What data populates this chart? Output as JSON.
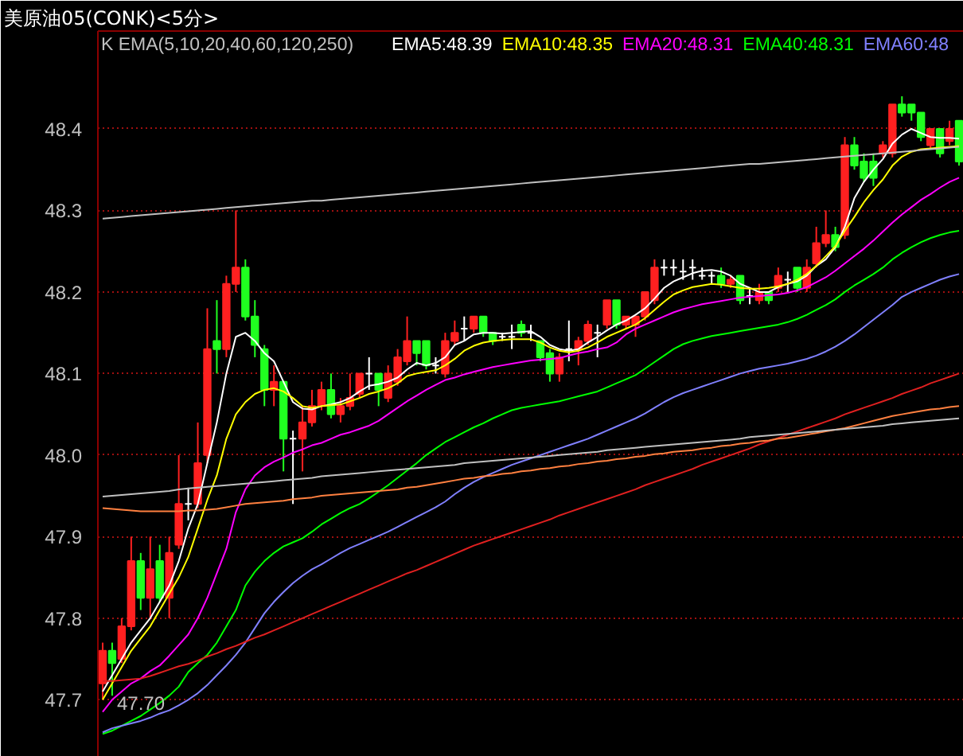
{
  "chart_data": {
    "type": "candlestick",
    "title": "美原油05(CONK)<5分>",
    "legend_title": "K EMA(5,10,20,40,60,120,250)",
    "categories": [
      null,
      null,
      null,
      null,
      null,
      null,
      null,
      null,
      null,
      null,
      null,
      null,
      null,
      null,
      null,
      null,
      null,
      null,
      null,
      null,
      null,
      null,
      null,
      null,
      null,
      null,
      null,
      null,
      null,
      null,
      null,
      null,
      null,
      null,
      null,
      null,
      null,
      null,
      null,
      null,
      null,
      null,
      null,
      null,
      null,
      null,
      null,
      null,
      null,
      null,
      null,
      null,
      null,
      null,
      null,
      null,
      null,
      null,
      null,
      null,
      null,
      null,
      null,
      null,
      null,
      null,
      null,
      null,
      null,
      null,
      null,
      null,
      null,
      null,
      null,
      null,
      null,
      null,
      null,
      null,
      null,
      null,
      null,
      null,
      null,
      null,
      null,
      null,
      null,
      null,
      null
    ],
    "ohlc": [
      [
        47.72,
        47.77,
        47.7,
        47.76
      ],
      [
        47.76,
        47.77,
        47.705,
        47.745
      ],
      [
        47.75,
        47.8,
        47.745,
        47.79
      ],
      [
        47.79,
        47.9,
        47.785,
        47.87
      ],
      [
        47.87,
        47.88,
        47.81,
        47.825
      ],
      [
        47.825,
        47.9,
        47.8,
        47.86
      ],
      [
        47.87,
        47.89,
        47.82,
        47.825
      ],
      [
        47.825,
        47.9,
        47.8,
        47.88
      ],
      [
        47.89,
        48.0,
        47.885,
        47.94
      ],
      [
        47.94,
        47.96,
        47.92,
        47.94
      ],
      [
        47.94,
        48.04,
        47.935,
        47.99
      ],
      [
        48.0,
        48.18,
        47.99,
        48.13
      ],
      [
        48.14,
        48.19,
        48.1,
        48.13
      ],
      [
        48.13,
        48.22,
        48.12,
        48.21
      ],
      [
        48.21,
        48.3,
        48.2,
        48.23
      ],
      [
        48.23,
        48.24,
        48.165,
        48.17
      ],
      [
        48.17,
        48.19,
        48.12,
        48.135
      ],
      [
        48.13,
        48.135,
        48.06,
        48.08
      ],
      [
        48.08,
        48.11,
        48.06,
        48.09
      ],
      [
        48.09,
        48.09,
        47.98,
        48.02
      ],
      [
        48.02,
        48.03,
        47.94,
        48.02
      ],
      [
        48.02,
        48.06,
        47.98,
        48.04
      ],
      [
        48.04,
        48.08,
        48.035,
        48.06
      ],
      [
        48.06,
        48.09,
        48.055,
        48.08
      ],
      [
        48.08,
        48.1,
        48.045,
        48.05
      ],
      [
        48.05,
        48.07,
        48.04,
        48.06
      ],
      [
        48.06,
        48.1,
        48.055,
        48.07
      ],
      [
        48.075,
        48.1,
        48.07,
        48.1
      ],
      [
        48.1,
        48.12,
        48.08,
        48.1
      ],
      [
        48.1,
        48.1,
        48.06,
        48.08
      ],
      [
        48.07,
        48.11,
        48.065,
        48.1
      ],
      [
        48.09,
        48.13,
        48.085,
        48.12
      ],
      [
        48.115,
        48.17,
        48.11,
        48.14
      ],
      [
        48.14,
        48.14,
        48.11,
        48.125
      ],
      [
        48.14,
        48.14,
        48.105,
        48.11
      ],
      [
        48.11,
        48.12,
        48.1,
        48.11
      ],
      [
        48.1,
        48.15,
        48.095,
        48.14
      ],
      [
        48.14,
        48.165,
        48.135,
        48.15
      ],
      [
        48.155,
        48.17,
        48.14,
        48.155
      ],
      [
        48.155,
        48.17,
        48.15,
        48.17
      ],
      [
        48.17,
        48.17,
        48.145,
        48.15
      ],
      [
        48.15,
        48.15,
        48.135,
        48.14
      ],
      [
        48.145,
        48.15,
        48.14,
        48.145
      ],
      [
        48.145,
        48.16,
        48.13,
        48.145
      ],
      [
        48.16,
        48.165,
        48.145,
        48.15
      ],
      [
        48.15,
        48.16,
        48.14,
        48.15
      ],
      [
        48.14,
        48.14,
        48.115,
        48.12
      ],
      [
        48.125,
        48.13,
        48.09,
        48.1
      ],
      [
        48.1,
        48.125,
        48.09,
        48.12
      ],
      [
        48.13,
        48.165,
        48.115,
        48.13
      ],
      [
        48.13,
        48.145,
        48.11,
        48.14
      ],
      [
        48.14,
        48.165,
        48.135,
        48.16
      ],
      [
        48.15,
        48.16,
        48.12,
        48.15
      ],
      [
        48.16,
        48.19,
        48.155,
        48.19
      ],
      [
        48.19,
        48.19,
        48.155,
        48.16
      ],
      [
        48.16,
        48.17,
        48.155,
        48.17
      ],
      [
        48.16,
        48.17,
        48.145,
        48.17
      ],
      [
        48.17,
        48.2,
        48.165,
        48.2
      ],
      [
        48.19,
        48.24,
        48.185,
        48.23
      ],
      [
        48.23,
        48.24,
        48.22,
        48.23
      ],
      [
        48.23,
        48.24,
        48.22,
        48.23
      ],
      [
        48.225,
        48.24,
        48.215,
        48.225
      ],
      [
        48.23,
        48.24,
        48.215,
        48.23
      ],
      [
        48.22,
        48.23,
        48.215,
        48.22
      ],
      [
        48.22,
        48.225,
        48.21,
        48.22
      ],
      [
        48.22,
        48.23,
        48.205,
        48.21
      ],
      [
        48.21,
        48.22,
        48.205,
        48.215
      ],
      [
        48.22,
        48.22,
        48.185,
        48.19
      ],
      [
        48.195,
        48.205,
        48.185,
        48.195
      ],
      [
        48.19,
        48.21,
        48.185,
        48.2
      ],
      [
        48.2,
        48.2,
        48.185,
        48.19
      ],
      [
        48.205,
        48.23,
        48.2,
        48.22
      ],
      [
        48.215,
        48.225,
        48.2,
        48.215
      ],
      [
        48.23,
        48.23,
        48.2,
        48.205
      ],
      [
        48.205,
        48.24,
        48.2,
        48.23
      ],
      [
        48.235,
        48.28,
        48.23,
        48.26
      ],
      [
        48.26,
        48.3,
        48.255,
        48.27
      ],
      [
        48.27,
        48.28,
        48.25,
        48.255
      ],
      [
        48.27,
        48.39,
        48.265,
        48.38
      ],
      [
        48.38,
        48.39,
        48.35,
        48.355
      ],
      [
        48.36,
        48.37,
        48.335,
        48.34
      ],
      [
        48.36,
        48.37,
        48.33,
        48.34
      ],
      [
        48.37,
        48.385,
        48.365,
        48.38
      ],
      [
        48.37,
        48.43,
        48.365,
        48.43
      ],
      [
        48.43,
        48.44,
        48.415,
        48.42
      ],
      [
        48.43,
        48.43,
        48.41,
        48.42
      ],
      [
        48.42,
        48.42,
        48.385,
        48.39
      ],
      [
        48.38,
        48.4,
        48.375,
        48.4
      ],
      [
        48.4,
        48.4,
        48.365,
        48.37
      ],
      [
        48.385,
        48.41,
        48.38,
        48.4
      ],
      [
        48.41,
        48.41,
        48.355,
        48.36
      ]
    ],
    "colors": [
      "#ff2020",
      "#20ff20",
      "#ff2020",
      "#ff2020",
      "#20ff20",
      "#ff2020",
      "#20ff20",
      "#ff2020",
      "#ff2020",
      "#ffffff",
      "#ff2020",
      "#ff2020",
      "#20ff20",
      "#ff2020",
      "#ff2020",
      "#20ff20",
      "#20ff20",
      "#20ff20",
      "#ff2020",
      "#20ff20",
      "#ffffff",
      "#ff2020",
      "#ff2020",
      "#ff2020",
      "#20ff20",
      "#ff2020",
      "#ff2020",
      "#ff2020",
      "#ffffff",
      "#20ff20",
      "#ff2020",
      "#ff2020",
      "#ff2020",
      "#20ff20",
      "#20ff20",
      "#ffffff",
      "#ff2020",
      "#ff2020",
      "#ffffff",
      "#ff2020",
      "#20ff20",
      "#20ff20",
      "#ffffff",
      "#ffffff",
      "#20ff20",
      "#ffffff",
      "#20ff20",
      "#20ff20",
      "#ff2020",
      "#ffffff",
      "#ff2020",
      "#ff2020",
      "#ffffff",
      "#ff2020",
      "#20ff20",
      "#ff2020",
      "#ff2020",
      "#ff2020",
      "#ff2020",
      "#ffffff",
      "#ffffff",
      "#ffffff",
      "#ffffff",
      "#ffffff",
      "#ffffff",
      "#20ff20",
      "#ff2020",
      "#20ff20",
      "#ffffff",
      "#ff2020",
      "#20ff20",
      "#ff2020",
      "#ffffff",
      "#20ff20",
      "#ff2020",
      "#ff2020",
      "#ff2020",
      "#20ff20",
      "#ff2020",
      "#20ff20",
      "#20ff20",
      "#20ff20",
      "#ff2020",
      "#ff2020",
      "#20ff20",
      "#20ff20",
      "#20ff20",
      "#ff2020",
      "#20ff20",
      "#ff2020",
      "#20ff20"
    ],
    "series": [
      {
        "name": "EMA5:48.39",
        "type": "line",
        "color": "#ffffff",
        "values": [
          47.71,
          47.73,
          47.75,
          47.77,
          47.785,
          47.8,
          47.82,
          47.84,
          47.87,
          47.91,
          47.94,
          47.99,
          48.04,
          48.1,
          48.145,
          48.15,
          48.14,
          48.125,
          48.115,
          48.09,
          48.065,
          48.057,
          48.056,
          48.06,
          48.062,
          48.065,
          48.07,
          48.078,
          48.085,
          48.087,
          48.09,
          48.095,
          48.105,
          48.113,
          48.11,
          48.113,
          48.12,
          48.135,
          48.14,
          48.148,
          48.15,
          48.15,
          48.149,
          48.15,
          48.151,
          48.152,
          48.145,
          48.135,
          48.13,
          48.128,
          48.13,
          48.138,
          48.145,
          48.153,
          48.16,
          48.165,
          48.172,
          48.18,
          48.192,
          48.205,
          48.213,
          48.218,
          48.223,
          48.226,
          48.227,
          48.225,
          48.22,
          48.21,
          48.205,
          48.2,
          48.2,
          48.206,
          48.21,
          48.213,
          48.22,
          48.232,
          48.24,
          48.255,
          48.28,
          48.315,
          48.335,
          48.35,
          48.363,
          48.382,
          48.393,
          48.4,
          48.395,
          48.39,
          48.389,
          48.389,
          48.388
        ]
      },
      {
        "name": "EMA10:48.35",
        "type": "line",
        "color": "#ffff00",
        "values": [
          47.7,
          47.72,
          47.74,
          47.76,
          47.775,
          47.79,
          47.81,
          47.83,
          47.85,
          47.875,
          47.91,
          47.945,
          47.975,
          48.02,
          48.05,
          48.065,
          48.075,
          48.08,
          48.082,
          48.078,
          48.07,
          48.06,
          48.058,
          48.06,
          48.061,
          48.062,
          48.066,
          48.07,
          48.075,
          48.078,
          48.082,
          48.088,
          48.097,
          48.1,
          48.102,
          48.104,
          48.11,
          48.118,
          48.128,
          48.134,
          48.138,
          48.14,
          48.141,
          48.142,
          48.142,
          48.142,
          48.138,
          48.132,
          48.128,
          48.126,
          48.128,
          48.132,
          48.138,
          48.145,
          48.15,
          48.155,
          48.16,
          48.168,
          48.178,
          48.188,
          48.197,
          48.202,
          48.206,
          48.208,
          48.21,
          48.209,
          48.207,
          48.205,
          48.204,
          48.204,
          48.205,
          48.207,
          48.21,
          48.215,
          48.222,
          48.232,
          48.244,
          48.256,
          48.275,
          48.292,
          48.31,
          48.325,
          48.338,
          48.355,
          48.366,
          48.372,
          48.375,
          48.376,
          48.377,
          48.378,
          48.379
        ]
      },
      {
        "name": "EMA20:48.31",
        "type": "line",
        "color": "#ff00ff",
        "values": [
          47.685,
          47.7,
          47.71,
          47.72,
          47.726,
          47.735,
          47.742,
          47.754,
          47.767,
          47.78,
          47.8,
          47.825,
          47.855,
          47.885,
          47.93,
          47.958,
          47.975,
          47.985,
          47.992,
          47.997,
          48.003,
          48.007,
          48.012,
          48.015,
          48.02,
          48.025,
          48.028,
          48.032,
          48.036,
          48.042,
          48.05,
          48.058,
          48.066,
          48.073,
          48.08,
          48.086,
          48.092,
          48.095,
          48.099,
          48.102,
          48.105,
          48.108,
          48.11,
          48.112,
          48.114,
          48.116,
          48.117,
          48.118,
          48.119,
          48.122,
          48.125,
          48.127,
          48.13,
          48.132,
          48.138,
          48.148,
          48.155,
          48.16,
          48.165,
          48.17,
          48.175,
          48.179,
          48.182,
          48.185,
          48.187,
          48.189,
          48.191,
          48.193,
          48.194,
          48.195,
          48.196,
          48.197,
          48.199,
          48.202,
          48.206,
          48.212,
          48.218,
          48.226,
          48.235,
          48.244,
          48.253,
          48.263,
          48.274,
          48.285,
          48.295,
          48.304,
          48.313,
          48.32,
          48.328,
          48.335,
          48.34
        ]
      },
      {
        "name": "EMA40:48.31",
        "type": "line",
        "color": "#00ff00",
        "values": [
          47.658,
          47.662,
          47.668,
          47.674,
          47.68,
          47.688,
          47.696,
          47.705,
          47.716,
          47.734,
          47.745,
          47.755,
          47.77,
          47.79,
          47.81,
          47.84,
          47.857,
          47.87,
          47.88,
          47.888,
          47.893,
          47.898,
          47.906,
          47.915,
          47.922,
          47.929,
          47.935,
          47.94,
          47.947,
          47.955,
          47.963,
          47.972,
          47.981,
          47.99,
          48.0,
          48.008,
          48.016,
          48.022,
          48.028,
          48.034,
          48.039,
          48.045,
          48.05,
          48.055,
          48.058,
          48.06,
          48.062,
          48.064,
          48.066,
          48.069,
          48.072,
          48.075,
          48.078,
          48.083,
          48.088,
          48.093,
          48.098,
          48.106,
          48.114,
          48.122,
          48.13,
          48.136,
          48.14,
          48.143,
          48.146,
          48.148,
          48.15,
          48.152,
          48.154,
          48.156,
          48.158,
          48.16,
          48.163,
          48.167,
          48.172,
          48.178,
          48.184,
          48.191,
          48.2,
          48.208,
          48.215,
          48.222,
          48.23,
          48.24,
          48.248,
          48.255,
          48.261,
          48.266,
          48.27,
          48.273,
          48.275
        ]
      },
      {
        "name": "EMA60:48",
        "type": "line",
        "color": "#8080ff",
        "values": [
          47.66,
          47.665,
          47.668,
          47.671,
          47.674,
          47.678,
          47.683,
          47.687,
          47.693,
          47.7,
          47.708,
          47.718,
          47.73,
          47.742,
          47.755,
          47.77,
          47.788,
          47.806,
          47.82,
          47.832,
          47.843,
          47.852,
          47.86,
          47.866,
          47.873,
          47.88,
          47.886,
          47.891,
          47.896,
          47.901,
          47.906,
          47.912,
          47.918,
          47.924,
          47.93,
          47.936,
          47.943,
          47.952,
          47.96,
          47.967,
          47.973,
          47.978,
          47.983,
          47.988,
          47.992,
          47.996,
          48.0,
          48.004,
          48.008,
          48.012,
          48.016,
          48.02,
          48.025,
          48.03,
          48.035,
          48.04,
          48.045,
          48.051,
          48.058,
          48.065,
          48.071,
          48.076,
          48.08,
          48.084,
          48.088,
          48.092,
          48.096,
          48.1,
          48.103,
          48.106,
          48.108,
          48.11,
          48.112,
          48.115,
          48.118,
          48.122,
          48.127,
          48.133,
          48.14,
          48.148,
          48.157,
          48.166,
          48.175,
          48.184,
          48.194,
          48.2,
          48.205,
          48.21,
          48.215,
          48.219,
          48.222
        ]
      },
      {
        "type": "line",
        "color": "#e02020",
        "values": [
          47.723,
          47.723,
          47.724,
          47.725,
          47.726,
          47.729,
          47.733,
          47.737,
          47.741,
          47.744,
          47.748,
          47.753,
          47.757,
          47.762,
          47.766,
          47.771,
          47.776,
          47.78,
          47.785,
          47.79,
          47.795,
          47.8,
          47.805,
          47.81,
          47.815,
          47.82,
          47.825,
          47.83,
          47.835,
          47.84,
          47.845,
          47.85,
          47.855,
          47.859,
          47.864,
          47.869,
          47.874,
          47.879,
          47.884,
          47.889,
          47.893,
          47.897,
          47.901,
          47.905,
          47.909,
          47.913,
          47.917,
          47.921,
          47.926,
          47.93,
          47.934,
          47.938,
          47.942,
          47.946,
          47.95,
          47.954,
          47.958,
          47.963,
          47.967,
          47.971,
          47.975,
          47.979,
          47.983,
          47.988,
          47.992,
          47.996,
          48.0,
          48.004,
          48.008,
          48.013,
          48.017,
          48.021,
          48.025,
          48.029,
          48.033,
          48.037,
          48.041,
          48.045,
          48.05,
          48.054,
          48.058,
          48.062,
          48.066,
          48.07,
          48.075,
          48.079,
          48.083,
          48.088,
          48.092,
          48.096,
          48.1
        ]
      },
      {
        "type": "line",
        "color": "#ff8040",
        "values": [
          47.935,
          47.934,
          47.933,
          47.932,
          47.931,
          47.931,
          47.931,
          47.931,
          47.931,
          47.932,
          47.932,
          47.933,
          47.934,
          47.936,
          47.938,
          47.94,
          47.941,
          47.942,
          47.943,
          47.944,
          47.946,
          47.947,
          47.948,
          47.95,
          47.951,
          47.952,
          47.953,
          47.954,
          47.955,
          47.956,
          47.957,
          47.958,
          47.96,
          47.961,
          47.963,
          47.965,
          47.967,
          47.969,
          47.971,
          47.972,
          47.974,
          47.975,
          47.977,
          47.978,
          47.98,
          47.981,
          47.983,
          47.984,
          47.986,
          47.987,
          47.989,
          47.99,
          47.992,
          47.993,
          47.995,
          47.996,
          47.998,
          47.999,
          48.001,
          48.002,
          48.004,
          48.005,
          48.006,
          48.008,
          48.009,
          48.011,
          48.012,
          48.014,
          48.015,
          48.017,
          48.018,
          48.02,
          48.021,
          48.023,
          48.025,
          48.027,
          48.029,
          48.031,
          48.033,
          48.036,
          48.039,
          48.042,
          48.045,
          48.048,
          48.05,
          48.052,
          48.054,
          48.056,
          48.057,
          48.059,
          48.06
        ]
      },
      {
        "type": "line",
        "color": "#c0c0c0",
        "values": [
          48.29,
          48.291,
          48.292,
          48.293,
          48.294,
          48.295,
          48.296,
          48.297,
          48.298,
          48.299,
          48.3,
          48.301,
          48.302,
          48.303,
          48.304,
          48.305,
          48.306,
          48.307,
          48.308,
          48.309,
          48.31,
          48.311,
          48.312,
          48.312,
          48.313,
          48.314,
          48.315,
          48.316,
          48.317,
          48.318,
          48.319,
          48.32,
          48.321,
          48.322,
          48.323,
          48.324,
          48.325,
          48.326,
          48.327,
          48.328,
          48.329,
          48.33,
          48.331,
          48.332,
          48.333,
          48.334,
          48.335,
          48.336,
          48.337,
          48.338,
          48.339,
          48.34,
          48.341,
          48.342,
          48.343,
          48.344,
          48.345,
          48.346,
          48.347,
          48.348,
          48.349,
          48.35,
          48.351,
          48.352,
          48.353,
          48.354,
          48.355,
          48.356,
          48.357,
          48.357,
          48.358,
          48.359,
          48.36,
          48.361,
          48.362,
          48.363,
          48.364,
          48.365,
          48.366,
          48.367,
          48.368,
          48.369,
          48.37,
          48.371,
          48.372,
          48.373,
          48.374,
          48.375,
          48.376,
          48.377,
          48.378
        ]
      },
      {
        "type": "line",
        "color": "#c0c0c0",
        "values": [
          47.949,
          47.95,
          47.951,
          47.952,
          47.953,
          47.954,
          47.955,
          47.956,
          47.958,
          47.959,
          47.96,
          47.961,
          47.962,
          47.963,
          47.964,
          47.965,
          47.966,
          47.967,
          47.968,
          47.969,
          47.97,
          47.971,
          47.972,
          47.974,
          47.975,
          47.976,
          47.977,
          47.978,
          47.979,
          47.98,
          47.981,
          47.982,
          47.983,
          47.984,
          47.985,
          47.986,
          47.987,
          47.988,
          47.99,
          47.991,
          47.992,
          47.993,
          47.994,
          47.995,
          47.996,
          47.997,
          47.998,
          47.999,
          48.0,
          48.001,
          48.002,
          48.003,
          48.004,
          48.006,
          48.007,
          48.008,
          48.009,
          48.01,
          48.011,
          48.012,
          48.013,
          48.014,
          48.015,
          48.016,
          48.017,
          48.018,
          48.019,
          48.02,
          48.022,
          48.023,
          48.024,
          48.025,
          48.026,
          48.027,
          48.028,
          48.029,
          48.03,
          48.031,
          48.032,
          48.033,
          48.034,
          48.035,
          48.036,
          48.038,
          48.039,
          48.04,
          48.041,
          48.042,
          48.043,
          48.044,
          48.045
        ]
      }
    ],
    "ylim": [
      47.63,
      48.52
    ],
    "yticks": [
      47.7,
      47.8,
      47.9,
      {
        "value": 48.0,
        "label": "48.0"
      },
      48.1,
      48.2,
      48.3,
      48.4
    ],
    "grid": "y",
    "legend": "top",
    "tick_labels": "y",
    "annotations": [
      "47.70"
    ]
  }
}
